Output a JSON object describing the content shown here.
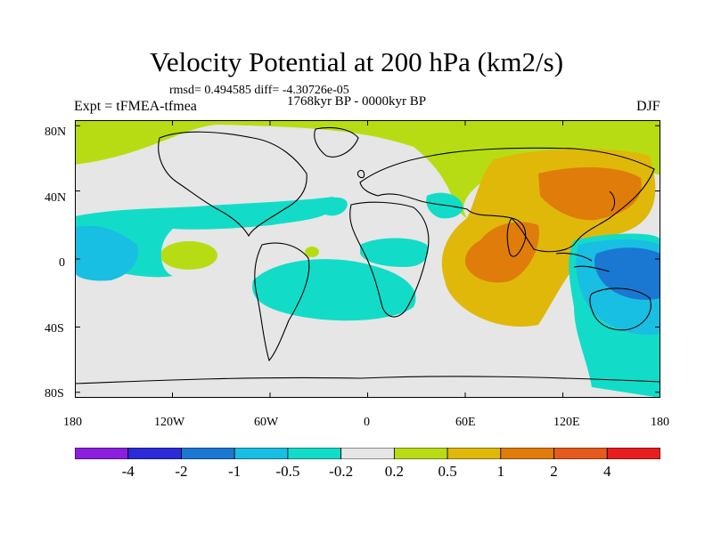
{
  "title": "Velocity Potential at 200 hPa (km2/s)",
  "stats": "rmsd= 0.494585 diff= -4.30726e-05",
  "subtitle": "1768kyr BP - 0000kyr BP",
  "expt": "Expt = tFMEA-tfmea",
  "season": "DJF",
  "map_data": {
    "type": "heatmap",
    "projection": "cylindrical-equidistant",
    "x_tick_labels": [
      "180",
      "120W",
      "60W",
      "0",
      "60E",
      "120E",
      "180"
    ],
    "y_tick_labels": [
      "80N",
      "40N",
      "0",
      "40S",
      "80S"
    ],
    "x_range": [
      -180,
      180
    ],
    "y_range": [
      -90,
      90
    ]
  },
  "colorbar": {
    "labels": [
      "-4",
      "-2",
      "-1",
      "-0.5",
      "-0.2",
      "0.2",
      "0.5",
      "1",
      "2",
      "4"
    ],
    "colors": [
      "#8a1fe0",
      "#2b2bd8",
      "#1a78d2",
      "#18bfe2",
      "#12dcc8",
      "#e6e6e6",
      "#b8dc14",
      "#e0b80a",
      "#e07c0a",
      "#e65a1e",
      "#e81e1e"
    ]
  },
  "field_colors": {
    "neutral": "#e6e6e6",
    "pos_small": "#b8dc14",
    "pos_mid": "#e0b80a",
    "pos_high": "#e07c0a",
    "neg_small": "#12dcc8",
    "neg_mid": "#18bfe2",
    "neg_high": "#1a78d2",
    "land_outline": "#000000"
  }
}
